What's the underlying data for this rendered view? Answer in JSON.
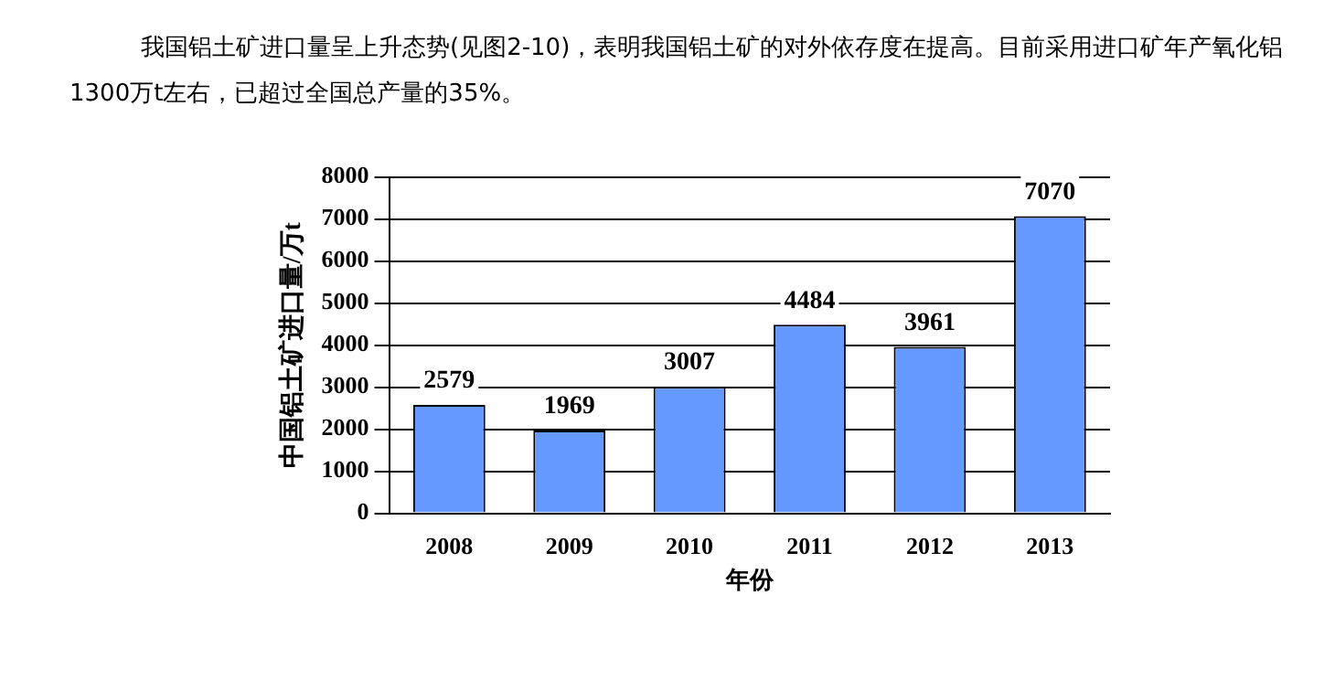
{
  "chart_data": {
    "type": "bar",
    "title": "我国铝土矿进口量呈上升态势(见图2-10)，表明我国铝土矿的对外依存度在提高。目前采用进口矿年产氧化铝1300万t左右，已超过全国总产量的35%。",
    "xlabel": "年份",
    "ylabel": "中国铝土矿进口量/万t",
    "categories": [
      "2008",
      "2009",
      "2010",
      "2011",
      "2012",
      "2013"
    ],
    "values": [
      2579,
      1969,
      3007,
      4484,
      3961,
      7070
    ],
    "color": "#6699ff",
    "ylim": [
      0,
      8000
    ],
    "yticks": [
      0,
      1000,
      2000,
      3000,
      4000,
      5000,
      6000,
      7000,
      8000
    ],
    "grid": "y",
    "data_labels": true
  }
}
